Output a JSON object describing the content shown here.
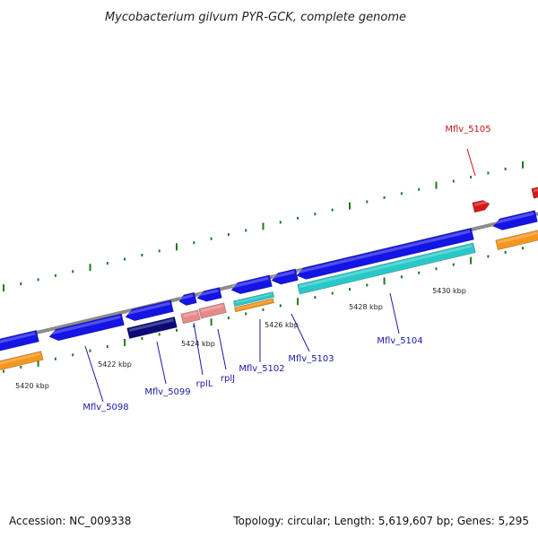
{
  "title": "Mycobacterium gilvum PYR-GCK, complete genome",
  "footer": {
    "accession": "Accession: NC_009338",
    "topology": "Topology: circular; Length: 5,619,607 bp; Genes: 5,295"
  },
  "colors": {
    "backbone": "#8c8c8c",
    "cds": "#1414e6",
    "gene_dark": "#0a0a78",
    "trna": "#e88a8a",
    "highlight": "#d81818",
    "teal": "#28c8c8",
    "orange": "#f5961e",
    "tick": "#1e7a1e",
    "label_normal": "#1a1aa8",
    "label_highlight": "#c81414"
  },
  "scale": {
    "ticks": [
      {
        "label": "5420 kbp"
      },
      {
        "label": "5422 kbp"
      },
      {
        "label": "5424 kbp"
      },
      {
        "label": "5426 kbp"
      },
      {
        "label": "5428 kbp"
      },
      {
        "label": "5430 kbp"
      }
    ]
  },
  "genes": [
    {
      "label": "Mflv_5098",
      "highlight": false
    },
    {
      "label": "Mflv_5099",
      "highlight": false
    },
    {
      "label": "rplL",
      "highlight": false
    },
    {
      "label": "rplJ",
      "highlight": false
    },
    {
      "label": "Mflv_5102",
      "highlight": false
    },
    {
      "label": "Mflv_5103",
      "highlight": false
    },
    {
      "label": "Mflv_5104",
      "highlight": false
    },
    {
      "label": "Mflv_5105",
      "highlight": true
    }
  ]
}
